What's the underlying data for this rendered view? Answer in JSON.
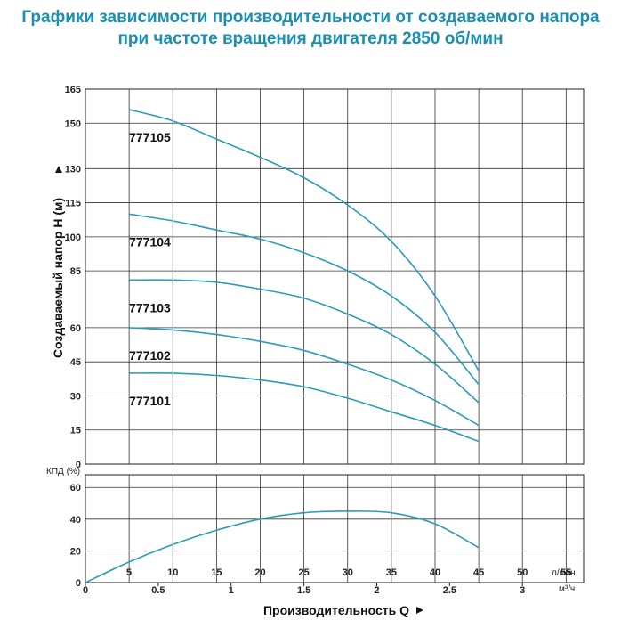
{
  "title_line1": "Графики зависимости производительности от создаваемого напора",
  "title_line2": "при частоте вращения двигателя 2850 об/мин",
  "chart_data": [
    {
      "type": "line",
      "ylabel": "Создаваемый напор H (м)",
      "xlabel": "Производительность Q",
      "x_unit_lmin": "л/мин",
      "x_unit_m3h": "м³/ч",
      "yticks": [
        "0",
        "15",
        "30",
        "45",
        "60",
        "85",
        "100",
        "115",
        "130",
        "150",
        "165"
      ],
      "xticks_lmin": [
        "5",
        "10",
        "15",
        "20",
        "25",
        "30",
        "35",
        "40",
        "45",
        "50",
        "55"
      ],
      "xticks_m3h": [
        "0",
        "0.5",
        "1",
        "1.5",
        "2",
        "2.5",
        "3"
      ],
      "ylim": [
        0,
        165
      ],
      "xlim": [
        0,
        57
      ],
      "series": [
        {
          "name": "777105",
          "x": [
            5,
            10,
            15,
            20,
            25,
            30,
            35,
            40,
            45
          ],
          "y": [
            156,
            151,
            143,
            135,
            126,
            114,
            98,
            74,
            41
          ]
        },
        {
          "name": "777104",
          "x": [
            5,
            10,
            15,
            20,
            25,
            30,
            35,
            40,
            45
          ],
          "y": [
            110,
            107,
            103,
            99,
            93,
            85,
            74,
            58,
            35
          ]
        },
        {
          "name": "777103",
          "x": [
            5,
            10,
            15,
            20,
            25,
            30,
            35,
            40,
            45
          ],
          "y": [
            81,
            81,
            80,
            77,
            73,
            66,
            57,
            44,
            27
          ]
        },
        {
          "name": "777102",
          "x": [
            5,
            10,
            15,
            20,
            25,
            30,
            35,
            40,
            45
          ],
          "y": [
            60,
            59,
            57,
            54,
            50,
            44,
            37,
            28,
            17
          ]
        },
        {
          "name": "777101",
          "x": [
            5,
            10,
            15,
            20,
            25,
            30,
            35,
            40,
            45
          ],
          "y": [
            40,
            40,
            39,
            37,
            34,
            29,
            23,
            17,
            10
          ]
        }
      ]
    },
    {
      "type": "line",
      "ylabel": "КПД (%)",
      "yticks": [
        "0",
        "20",
        "40",
        "60"
      ],
      "ylim": [
        0,
        68
      ],
      "xlim": [
        0,
        57
      ],
      "series": [
        {
          "name": "",
          "x": [
            0,
            5,
            10,
            15,
            20,
            25,
            30,
            35,
            40,
            45
          ],
          "y": [
            0,
            13,
            24,
            33,
            40,
            44,
            45,
            44,
            37,
            22
          ]
        }
      ]
    }
  ]
}
